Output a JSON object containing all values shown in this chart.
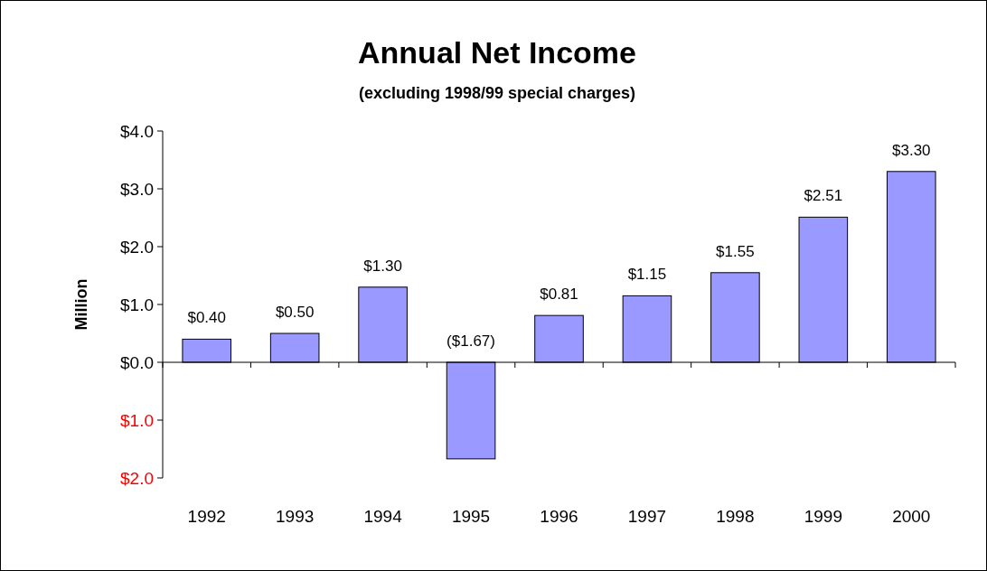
{
  "chart_data": {
    "type": "bar",
    "title": "Annual Net Income",
    "subtitle": "(excluding 1998/99 special charges)",
    "ylabel": "Million",
    "categories": [
      "1992",
      "1993",
      "1994",
      "1995",
      "1996",
      "1997",
      "1998",
      "1999",
      "2000"
    ],
    "values": [
      0.4,
      0.5,
      1.3,
      -1.67,
      0.81,
      1.15,
      1.55,
      2.51,
      3.3
    ],
    "value_labels": [
      "$0.40",
      "$0.50",
      "$1.30",
      "($1.67)",
      "$0.81",
      "$1.15",
      "$1.55",
      "$2.51",
      "$3.30"
    ],
    "color": "#9999ff",
    "ylim": [
      -2,
      4
    ],
    "yticks": [
      {
        "value": 4,
        "label": "$4.0"
      },
      {
        "value": 3,
        "label": "$3.0"
      },
      {
        "value": 2,
        "label": "$2.0"
      },
      {
        "value": 1,
        "label": "$1.0"
      },
      {
        "value": 0,
        "label": "$0.0"
      },
      {
        "value": -1,
        "label": "$1.0"
      },
      {
        "value": -2,
        "label": "$2.0"
      }
    ]
  }
}
